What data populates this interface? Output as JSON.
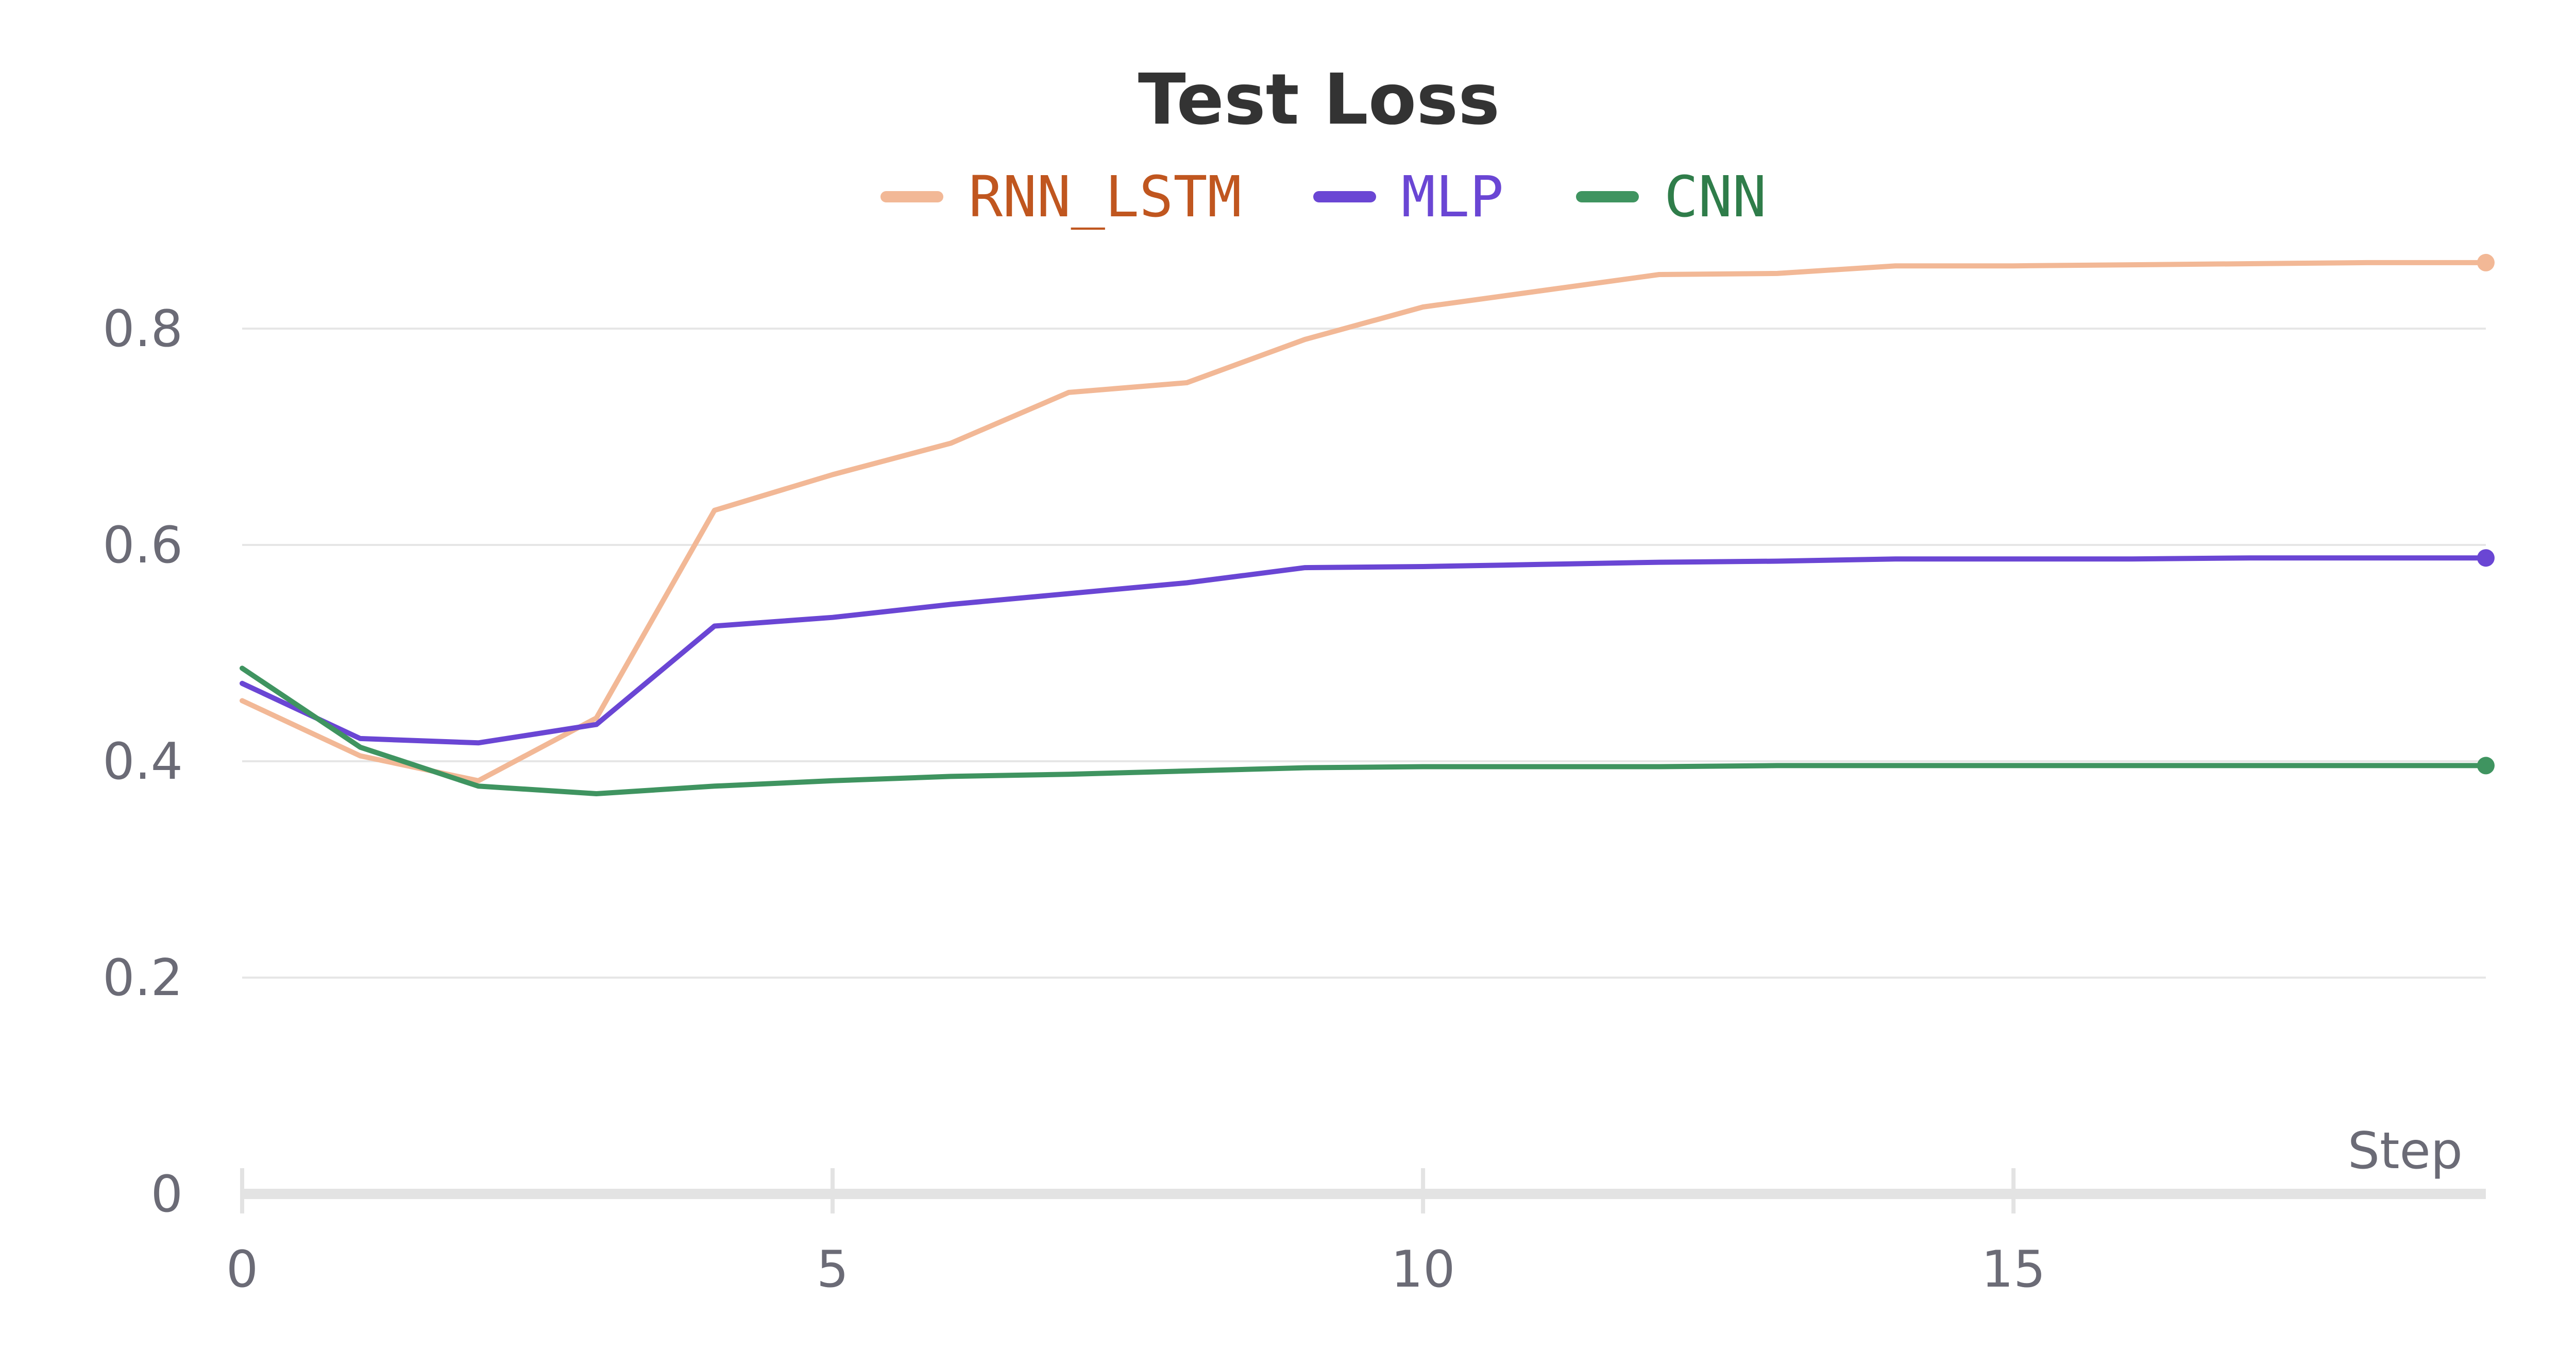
{
  "chart_data": {
    "type": "line",
    "title": "Test Loss",
    "xlabel": "Step",
    "ylabel": "",
    "xlim": [
      0,
      19
    ],
    "ylim": [
      0,
      0.9
    ],
    "x_ticks": [
      "0",
      "5",
      "10",
      "15"
    ],
    "y_ticks": [
      "0",
      "0.2",
      "0.4",
      "0.6",
      "0.8"
    ],
    "grid": "horizontal",
    "legend_position": "top-center",
    "x": [
      0,
      1,
      2,
      3,
      4,
      5,
      6,
      7,
      8,
      9,
      10,
      11,
      12,
      13,
      14,
      15,
      16,
      17,
      18,
      19
    ],
    "series": [
      {
        "name": "RNN_LSTM",
        "color": "#f2b896",
        "legend_text_color": "#c0561f",
        "values": [
          0.456,
          0.405,
          0.382,
          0.44,
          0.632,
          0.665,
          0.694,
          0.741,
          0.75,
          0.79,
          0.82,
          0.835,
          0.85,
          0.851,
          0.858,
          0.858,
          0.859,
          0.86,
          0.861,
          0.861
        ]
      },
      {
        "name": "MLP",
        "color": "#6a46d4",
        "legend_text_color": "#6a46d4",
        "values": [
          0.472,
          0.421,
          0.417,
          0.434,
          0.525,
          0.533,
          0.545,
          0.555,
          0.565,
          0.579,
          0.58,
          0.582,
          0.584,
          0.585,
          0.587,
          0.587,
          0.587,
          0.588,
          0.588,
          0.588
        ]
      },
      {
        "name": "CNN",
        "color": "#3f9460",
        "legend_text_color": "#2f7d4a",
        "values": [
          0.486,
          0.413,
          0.377,
          0.37,
          0.377,
          0.382,
          0.386,
          0.388,
          0.391,
          0.394,
          0.395,
          0.395,
          0.395,
          0.396,
          0.396,
          0.396,
          0.396,
          0.396,
          0.396,
          0.396
        ]
      }
    ]
  }
}
